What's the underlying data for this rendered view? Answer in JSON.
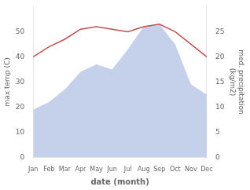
{
  "chart_data": {
    "type": "line",
    "categories": [
      "Jan",
      "Feb",
      "Mar",
      "Apr",
      "May",
      "Jun",
      "Jul",
      "Aug",
      "Sep",
      "Oct",
      "Nov",
      "Dec"
    ],
    "series": [
      {
        "type": "area",
        "color": "#c5d0ea",
        "values": [
          19,
          22,
          27,
          34,
          37,
          35,
          43,
          52,
          53,
          45,
          29,
          25
        ]
      },
      {
        "type": "line",
        "color": "#c0504d",
        "values": [
          40,
          44,
          47,
          51,
          52,
          51,
          50,
          52,
          53,
          50,
          45,
          40
        ]
      }
    ],
    "xlabel": "date (month)",
    "ylabel": "max temp (C)",
    "y2label": "med. precipitation\n(kg/m2)",
    "ylim": [
      0,
      60
    ],
    "yticks": [
      0,
      10,
      20,
      30,
      40,
      50
    ],
    "y2lim": [
      0,
      30
    ],
    "y2ticks": [
      0,
      5,
      10,
      15,
      20,
      25
    ],
    "grid": false
  }
}
